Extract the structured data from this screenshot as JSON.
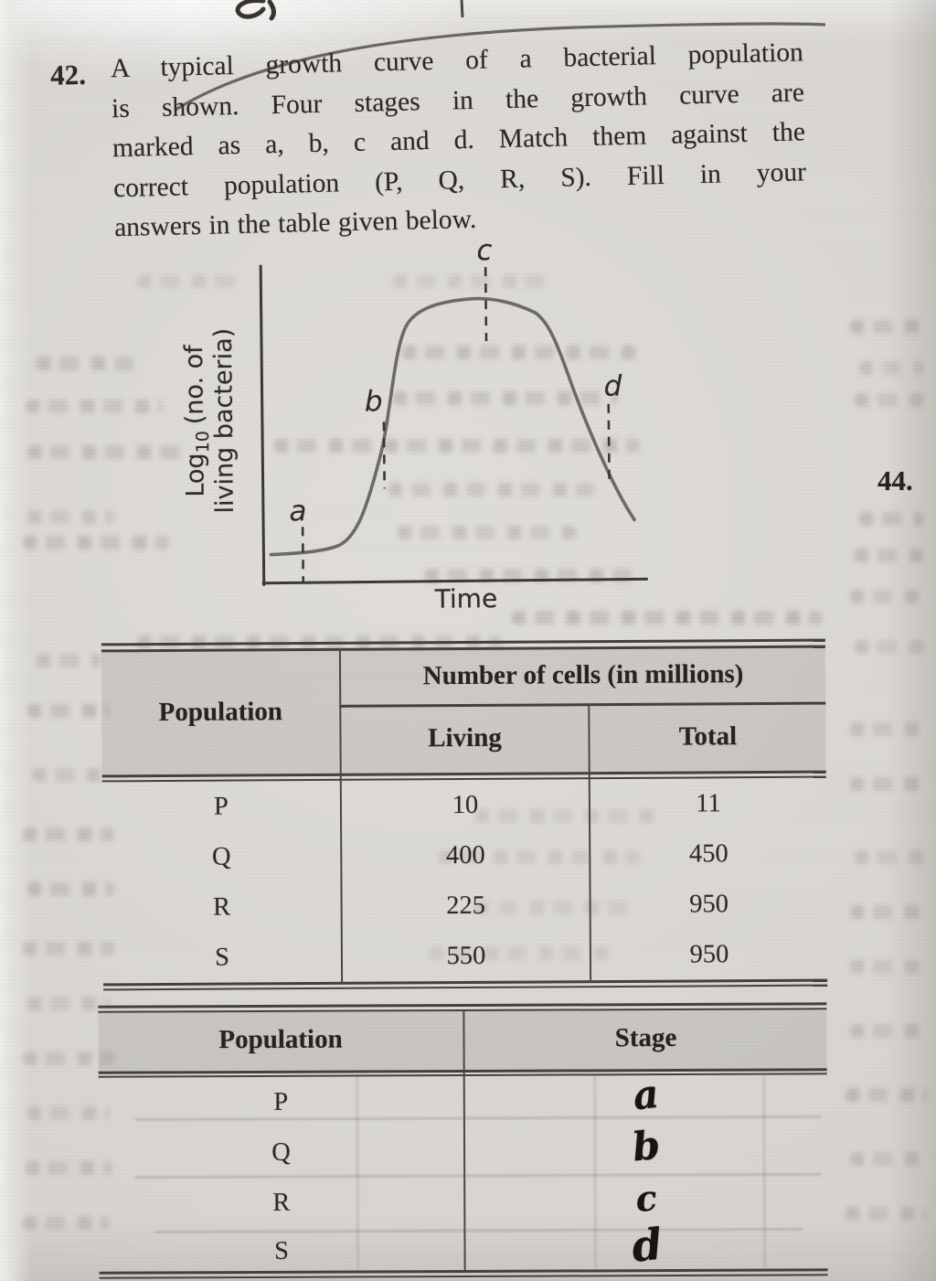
{
  "page": {
    "question_number": "42.",
    "question_lines": [
      "A typical growth curve of a bacterial population",
      "is shown. Four stages in the growth curve are",
      "marked as a, b, c and d. Match them against the",
      "correct population (P, Q, R, S). Fill in your",
      "answers in the table given below."
    ],
    "margin_number": "44."
  },
  "chart": {
    "ylabel_pre": "Log",
    "ylabel_sub": "10",
    "ylabel_post": "(no. of",
    "ylabel_line2": "living bacteria)",
    "xlabel": "Time",
    "label_a": "a",
    "label_b": "b",
    "label_c": "c",
    "label_d": "d"
  },
  "chart_data": {
    "type": "line",
    "title": "",
    "xlabel": "Time",
    "ylabel": "Log10 (no. of living bacteria)",
    "axis_ticks": "none (qualitative sketch, no numeric ticks)",
    "series": [
      {
        "name": "bacterial growth curve",
        "x": [
          0,
          1,
          2,
          3,
          4,
          5,
          6,
          7,
          8,
          9,
          10
        ],
        "y": [
          0.08,
          0.09,
          0.13,
          0.38,
          0.78,
          0.88,
          0.9,
          0.89,
          0.83,
          0.5,
          0.18
        ],
        "units": "qualitative (normalized 0-1)"
      }
    ],
    "annotations": [
      {
        "label": "a",
        "marker": "dashed vertical tick",
        "curve_section": "flat initial (lag) portion"
      },
      {
        "label": "b",
        "marker": "dashed vertical tick",
        "curve_section": "steep rising (exponential) portion"
      },
      {
        "label": "c",
        "marker": "dashed vertical tick",
        "curve_section": "plateau (stationary) portion"
      },
      {
        "label": "d",
        "marker": "dashed vertical tick",
        "curve_section": "declining (death) portion"
      }
    ],
    "legend": "none",
    "grid": false
  },
  "table1": {
    "col_population": "Population",
    "col_cells": "Number of cells (in millions)",
    "col_living": "Living",
    "col_total": "Total",
    "rows": [
      {
        "pop": "P",
        "living": "10",
        "total": "11"
      },
      {
        "pop": "Q",
        "living": "400",
        "total": "450"
      },
      {
        "pop": "R",
        "living": "225",
        "total": "950"
      },
      {
        "pop": "S",
        "living": "550",
        "total": "950"
      }
    ]
  },
  "table2": {
    "col_population": "Population",
    "col_stage": "Stage",
    "rows": [
      {
        "pop": "P",
        "stage": "a"
      },
      {
        "pop": "Q",
        "stage": "b"
      },
      {
        "pop": "R",
        "stage": "c"
      },
      {
        "pop": "S",
        "stage": "d"
      }
    ]
  }
}
